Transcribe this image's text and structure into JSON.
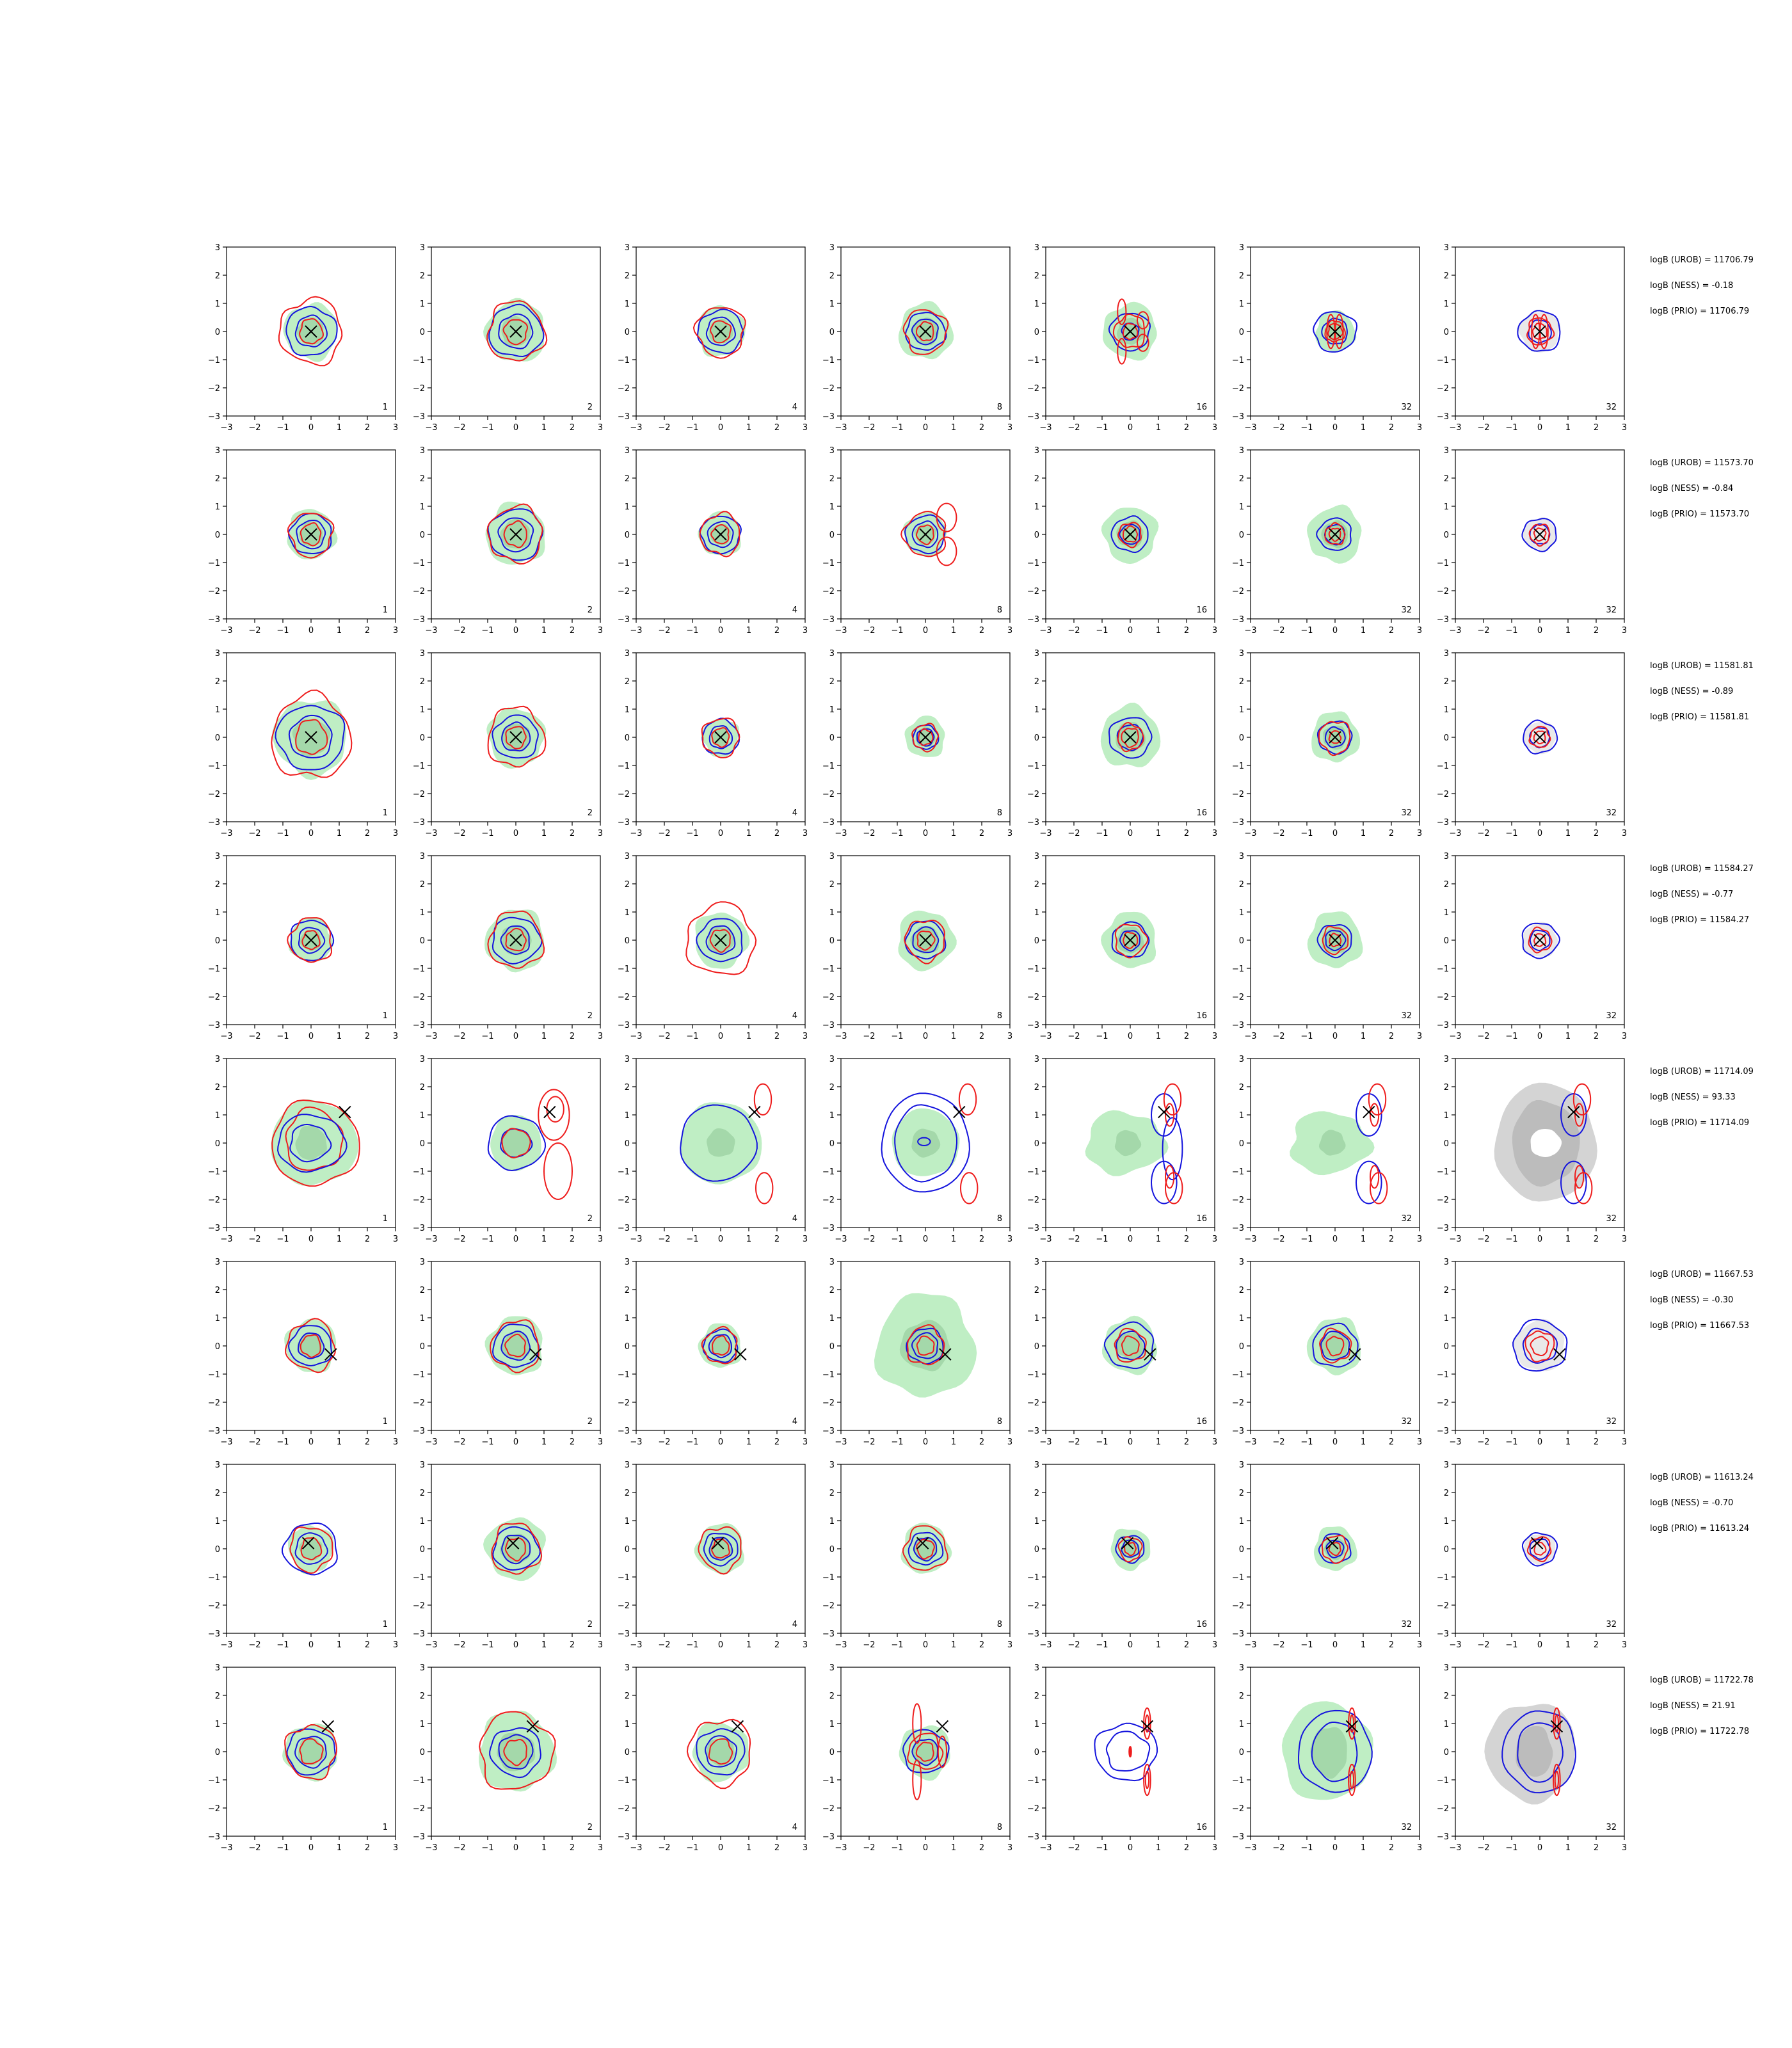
{
  "chart_data": {
    "type": "contour-grid",
    "colors": {
      "red_contour": "#ee1c1c",
      "blue_contour": "#1414dd",
      "green_fill": "#bfeec4",
      "green_core": "#a4d8aa",
      "gray_fill": "#d4d4d4",
      "gray_core": "#bcbcbc",
      "marker": "#000000"
    },
    "xlim": [
      -3,
      3
    ],
    "ylim": [
      -3,
      3
    ],
    "ticks": [
      "−3",
      "−2",
      "−1",
      "0",
      "1",
      "2",
      "3"
    ],
    "column_labels": [
      "1",
      "2",
      "4",
      "8",
      "16",
      "32",
      "32"
    ],
    "rows": [
      {
        "marker": [
          0.0,
          0.0
        ],
        "annotations": [
          "logB (UROB) = 11706.79",
          "logB (NESS) = -0.18",
          "logB (PRIO) = 11706.79"
        ]
      },
      {
        "marker": [
          0.0,
          0.0
        ],
        "annotations": [
          "logB (UROB) = 11573.70",
          "logB (NESS) = -0.84",
          "logB (PRIO) = 11573.70"
        ]
      },
      {
        "marker": [
          0.0,
          0.0
        ],
        "annotations": [
          "logB (UROB) = 11581.81",
          "logB (NESS) = -0.89",
          "logB (PRIO) = 11581.81"
        ]
      },
      {
        "marker": [
          0.0,
          0.0
        ],
        "annotations": [
          "logB (UROB) = 11584.27",
          "logB (NESS) = -0.77",
          "logB (PRIO) = 11584.27"
        ]
      },
      {
        "marker": [
          1.2,
          1.1
        ],
        "annotations": [
          "logB (UROB) = 11714.09",
          "logB (NESS) = 93.33",
          "logB (PRIO) = 11714.09"
        ]
      },
      {
        "marker": [
          0.7,
          -0.3
        ],
        "annotations": [
          "logB (UROB) = 11667.53",
          "logB (NESS) = -0.30",
          "logB (PRIO) = 11667.53"
        ]
      },
      {
        "marker": [
          -0.1,
          0.2
        ],
        "annotations": [
          "logB (UROB) = 11613.24",
          "logB (NESS) = -0.70",
          "logB (PRIO) = 11613.24"
        ]
      },
      {
        "marker": [
          0.6,
          0.9
        ],
        "annotations": [
          "logB (UROB) = 11722.78",
          "logB (NESS) = 21.91",
          "logB (PRIO) = 11722.78"
        ]
      }
    ]
  }
}
